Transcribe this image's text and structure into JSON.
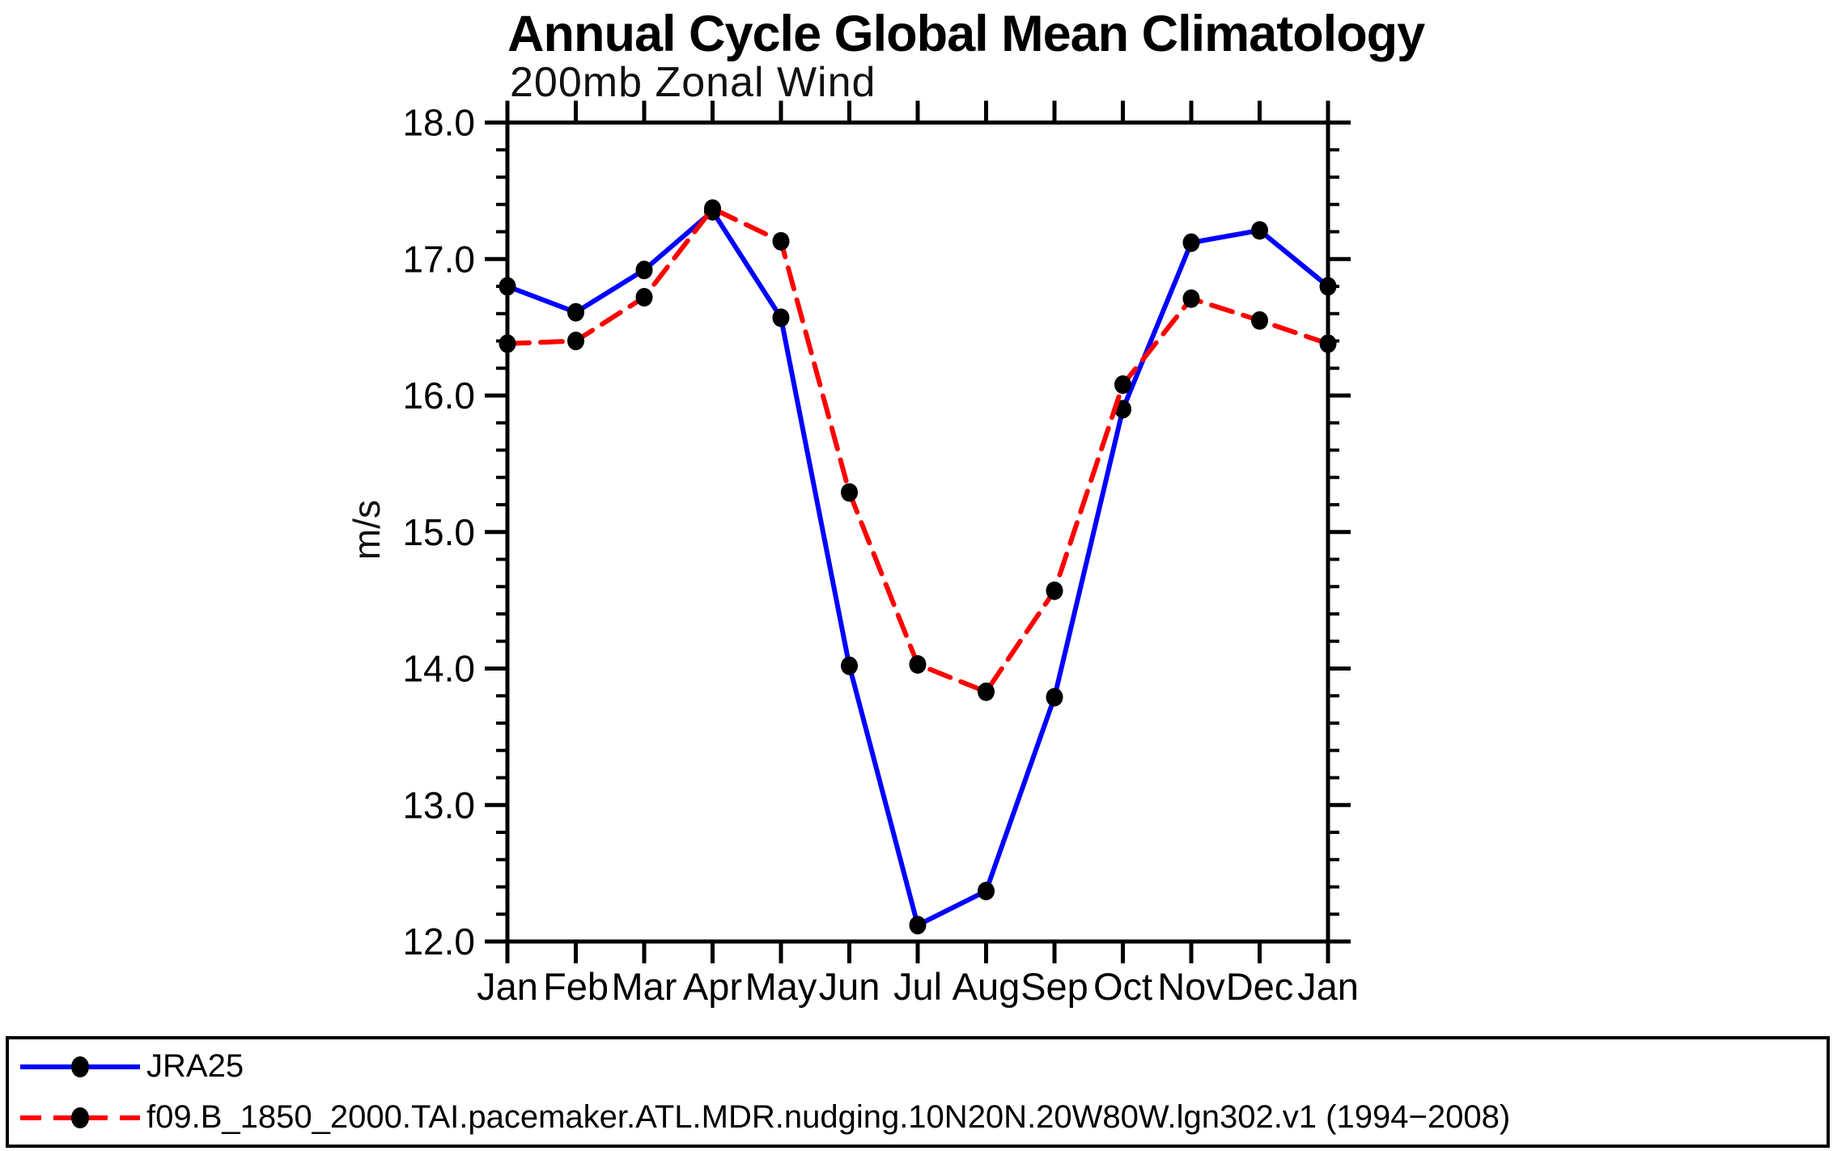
{
  "chart_data": {
    "type": "line",
    "title": "Annual Cycle Global Mean Climatology",
    "subtitle": "200mb Zonal Wind",
    "ylabel": "m/s",
    "xlabel": "",
    "ylim": [
      12.0,
      18.0
    ],
    "ytick_interval": 1.0,
    "yminor_interval": 0.2,
    "ytick_labels": [
      "12.0",
      "13.0",
      "14.0",
      "15.0",
      "16.0",
      "17.0",
      "18.0"
    ],
    "categories": [
      "Jan",
      "Feb",
      "Mar",
      "Apr",
      "May",
      "Jun",
      "Jul",
      "Aug",
      "Sep",
      "Oct",
      "Nov",
      "Dec",
      "Jan"
    ],
    "grid": false,
    "frame": "full-box",
    "legend_position": "bottom-full-width-box",
    "series": [
      {
        "name": "JRA25",
        "color": "#0000ff",
        "line_style": "solid",
        "marker": "filled-circle",
        "marker_color": "#000000",
        "values": [
          16.8,
          16.61,
          16.92,
          17.35,
          16.57,
          14.02,
          12.12,
          12.37,
          13.79,
          15.9,
          17.12,
          17.21,
          16.8
        ]
      },
      {
        "name": "f09.B_1850_2000.TAI.pacemaker.ATL.MDR.nudging.10N20N.20W80W.lgn302.v1 (1994−2008)",
        "color": "#ff0000",
        "line_style": "dashed",
        "marker": "filled-circle",
        "marker_color": "#000000",
        "values": [
          16.38,
          16.4,
          16.72,
          17.37,
          17.13,
          15.29,
          14.03,
          13.83,
          14.57,
          16.08,
          16.71,
          16.55,
          16.38
        ]
      }
    ]
  }
}
